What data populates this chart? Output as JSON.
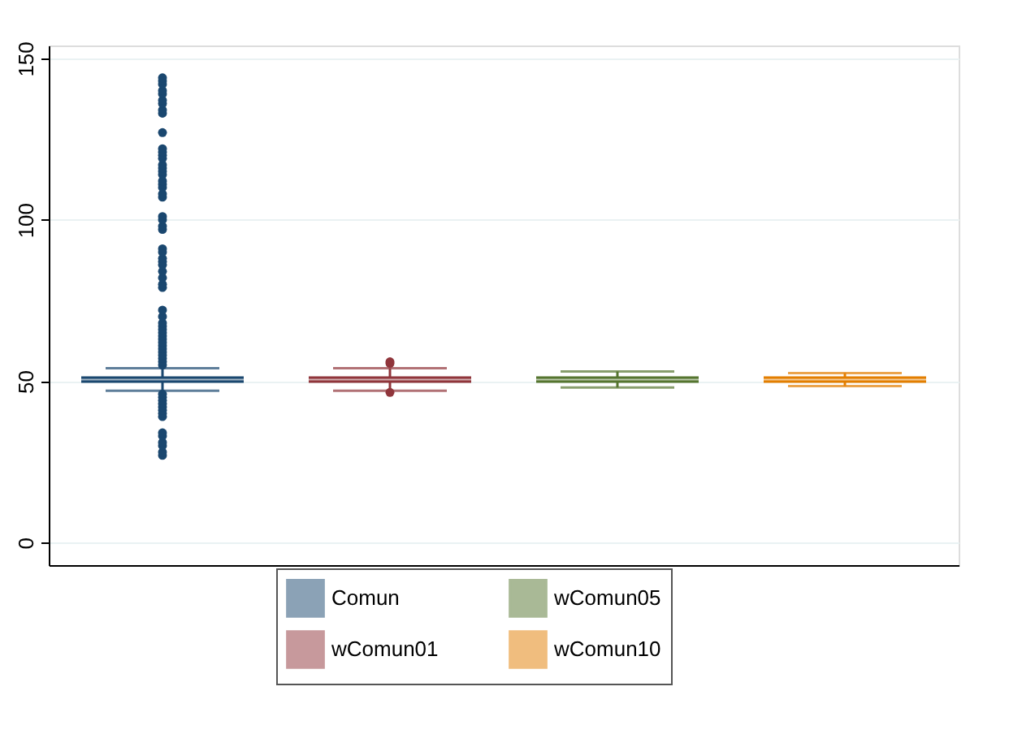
{
  "chart_data": {
    "type": "box",
    "categories": [
      null,
      null,
      null,
      null
    ],
    "series": [
      {
        "name": "Comun",
        "color": "#1a476f",
        "boxes": [
          {
            "low": 47,
            "q1": 49.5,
            "median": 50.5,
            "q3": 51.5,
            "high": 54,
            "outliers": [
              27,
              28,
              30,
              31,
              33,
              34,
              39,
              40,
              41,
              42,
              43,
              44,
              45,
              46,
              55,
              56,
              57,
              58,
              59,
              60,
              61,
              62,
              63,
              64,
              65,
              66,
              67,
              68,
              70,
              72,
              79,
              80,
              82,
              84,
              86,
              87,
              88,
              90,
              91,
              97,
              98,
              100,
              101,
              107,
              108,
              110,
              111,
              112,
              114,
              115,
              116,
              117,
              119,
              120,
              121,
              122,
              127,
              133,
              134,
              136,
              137,
              139,
              140,
              142,
              143,
              144
            ]
          },
          null,
          null,
          null
        ]
      },
      {
        "name": "wComun01",
        "color": "#90353b",
        "boxes": [
          null,
          {
            "low": 47,
            "q1": 49.5,
            "median": 50.5,
            "q3": 51.5,
            "high": 54,
            "outliers": [
              46.5,
              55.5,
              56
            ]
          },
          null,
          null
        ]
      },
      {
        "name": "wComun05",
        "color": "#55752f",
        "boxes": [
          null,
          null,
          {
            "low": 48,
            "q1": 49.5,
            "median": 50.5,
            "q3": 51.5,
            "high": 53
          },
          null
        ]
      },
      {
        "name": "wComun10",
        "color": "#e37e00",
        "boxes": [
          null,
          null,
          null,
          {
            "low": 48.5,
            "q1": 49.5,
            "median": 50.5,
            "q3": 51.5,
            "high": 52.5
          }
        ]
      }
    ],
    "ylim": [
      -7,
      154
    ],
    "yticks": [
      0,
      50,
      100,
      150
    ],
    "grid": "y",
    "legend": "bottom",
    "tick_labels": "y"
  }
}
